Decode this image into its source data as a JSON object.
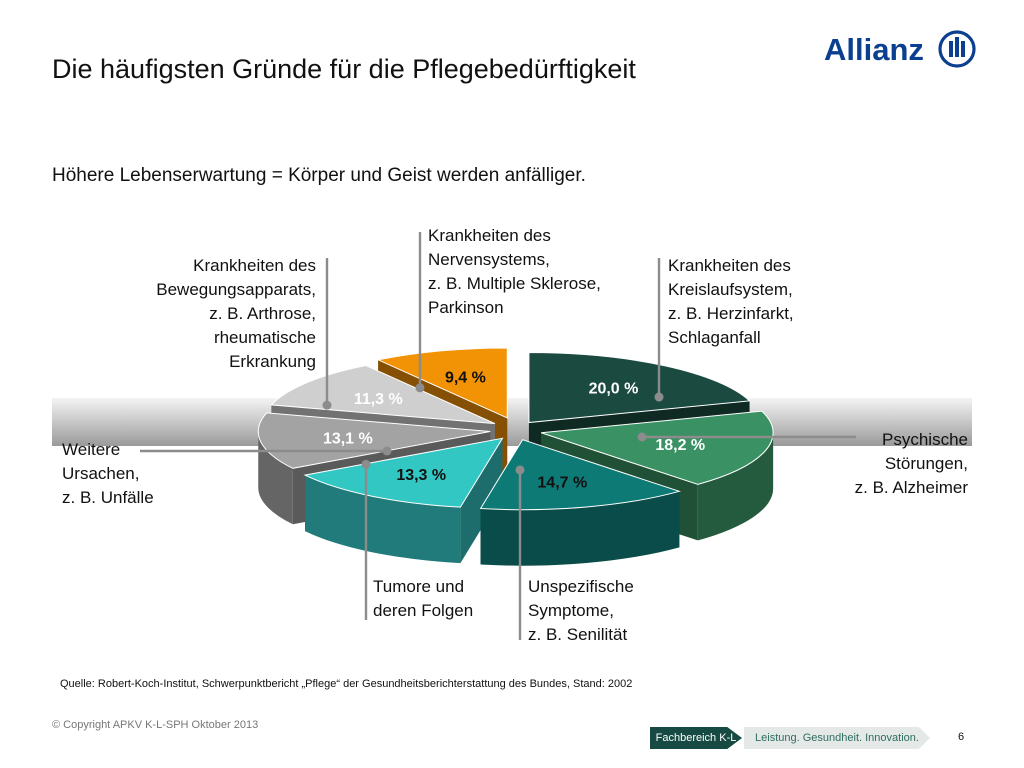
{
  "title": "Die häufigsten Gründe für die Pflegebedürftigkeit",
  "subtitle": "Höhere Lebenserwartung = Körper und Geist werden anfälliger.",
  "logo_text": "Allianz",
  "colors": {
    "herz": "#1b4a40",
    "psych": "#3a9163",
    "unspez": "#0e7a76",
    "tumor": "#33c7c4",
    "weitere": "#a3a3a3",
    "bewegung": "#cfcfcf",
    "nerven": "#f29205"
  },
  "chart_data": {
    "type": "pie",
    "title": "",
    "slices": [
      {
        "key": "herz",
        "value": 20.0,
        "label": "20,0 %"
      },
      {
        "key": "psych",
        "value": 18.2,
        "label": "18,2 %"
      },
      {
        "key": "unspez",
        "value": 14.7,
        "label": "14,7 %"
      },
      {
        "key": "tumor",
        "value": 13.3,
        "label": "13,3 %"
      },
      {
        "key": "weitere",
        "value": 13.1,
        "label": "13,1 %"
      },
      {
        "key": "bewegung",
        "value": 11.3,
        "label": "11,3 %"
      },
      {
        "key": "nerven",
        "value": 9.4,
        "label": "9,4 %"
      }
    ],
    "categories": {
      "herz": [
        "Krankheiten des",
        "Kreislaufsystem,",
        "z. B. Herzinfarkt,",
        "Schlaganfall"
      ],
      "psych": [
        "Psychische",
        "Störungen,",
        "z. B. Alzheimer"
      ],
      "unspez": [
        "Unspezifische",
        "Symptome,",
        "z. B. Senilität"
      ],
      "tumor": [
        "Tumore und",
        "deren Folgen"
      ],
      "weitere": [
        "Weitere",
        "Ursachen,",
        "z. B. Unfälle"
      ],
      "bewegung": [
        "Krankheiten des",
        "Bewegungsapparats,",
        "z. B. Arthrose,",
        "rheumatische",
        "Erkrankung"
      ],
      "nerven": [
        "Krankheiten des",
        "Nervensystems,",
        "z. B. Multiple Sklerose,",
        "Parkinson"
      ]
    }
  },
  "source": "Quelle: Robert-Koch-Institut, Schwerpunktbericht „Pflege“ der Gesundheitsberichterstattung des Bundes, Stand: 2002",
  "footer": {
    "copyright": "© Copyright APKV K-L-SPH Oktober 2013",
    "department": "Fachbereich K-L",
    "slogan": "Leistung. Gesundheit. Innovation.",
    "page": "6"
  }
}
